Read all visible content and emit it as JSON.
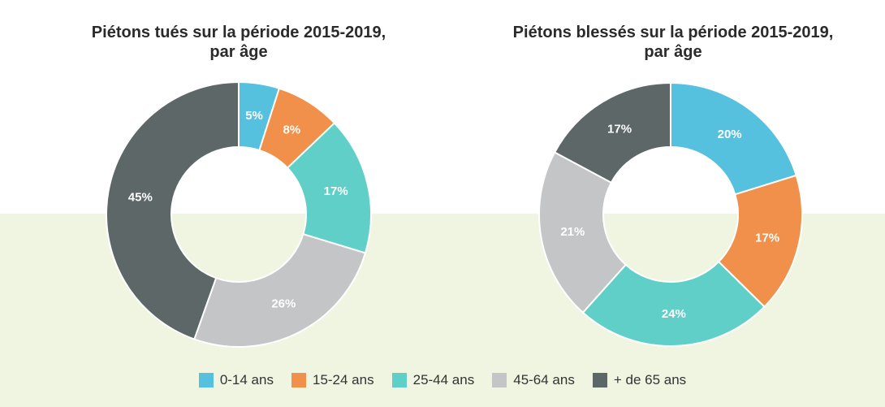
{
  "colors": {
    "band_background": "#f0f5e1",
    "categories": [
      "#56c1df",
      "#f0904a",
      "#5fcfc8",
      "#c4c5c7",
      "#5d6768"
    ]
  },
  "legend": [
    "0-14 ans",
    "15-24 ans",
    "25-44 ans",
    "45-64 ans",
    "+ de 65 ans"
  ],
  "chart_data": [
    {
      "type": "pie",
      "donut": true,
      "title": "Piétons tués sur la période 2015-2019, par âge",
      "title_lines": [
        "Piétons tués sur la période 2015-2019,",
        "par âge"
      ],
      "categories": [
        "0-14 ans",
        "15-24 ans",
        "25-44 ans",
        "45-64 ans",
        "+ de 65 ans"
      ],
      "values": [
        5,
        8,
        17,
        26,
        45
      ],
      "labels": [
        "5%",
        "8%",
        "17%",
        "26%",
        "45%"
      ],
      "unit": "%"
    },
    {
      "type": "pie",
      "donut": true,
      "title": "Piétons blessés sur la période 2015-2019, par âge",
      "title_lines": [
        "Piétons blessés sur la période 2015-2019,",
        "par âge"
      ],
      "categories": [
        "0-14 ans",
        "15-24 ans",
        "25-44 ans",
        "45-64 ans",
        "+ de 65 ans"
      ],
      "values": [
        20,
        17,
        24,
        21,
        17
      ],
      "labels": [
        "20%",
        "17%",
        "24%",
        "21%",
        "17%"
      ],
      "unit": "%"
    }
  ]
}
